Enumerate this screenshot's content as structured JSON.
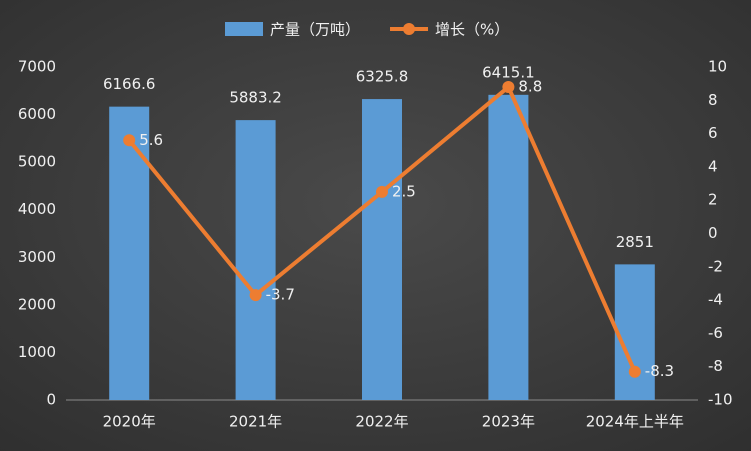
{
  "chart_data": {
    "type": "combo",
    "categories": [
      "2020年",
      "2021年",
      "2022年",
      "2023年",
      "2024年上半年"
    ],
    "series": [
      {
        "name": "产量（万吨）",
        "type": "bar",
        "color": "#5b9bd5",
        "values": [
          6166.6,
          5883.2,
          6325.8,
          6415.1,
          2851
        ]
      },
      {
        "name": "增长（%）",
        "type": "line",
        "color": "#ed7d31",
        "axis": "y2",
        "values": [
          5.6,
          -3.7,
          2.5,
          8.8,
          -8.3
        ]
      }
    ],
    "ylim": [
      0,
      7000
    ],
    "yticks": [
      0,
      1000,
      2000,
      3000,
      4000,
      5000,
      6000,
      7000
    ],
    "y2lim": [
      -10,
      10
    ],
    "y2ticks": [
      -10,
      -8,
      -6,
      -4,
      -2,
      0,
      2,
      4,
      6,
      8,
      10
    ],
    "grid": false,
    "legend": "top"
  }
}
